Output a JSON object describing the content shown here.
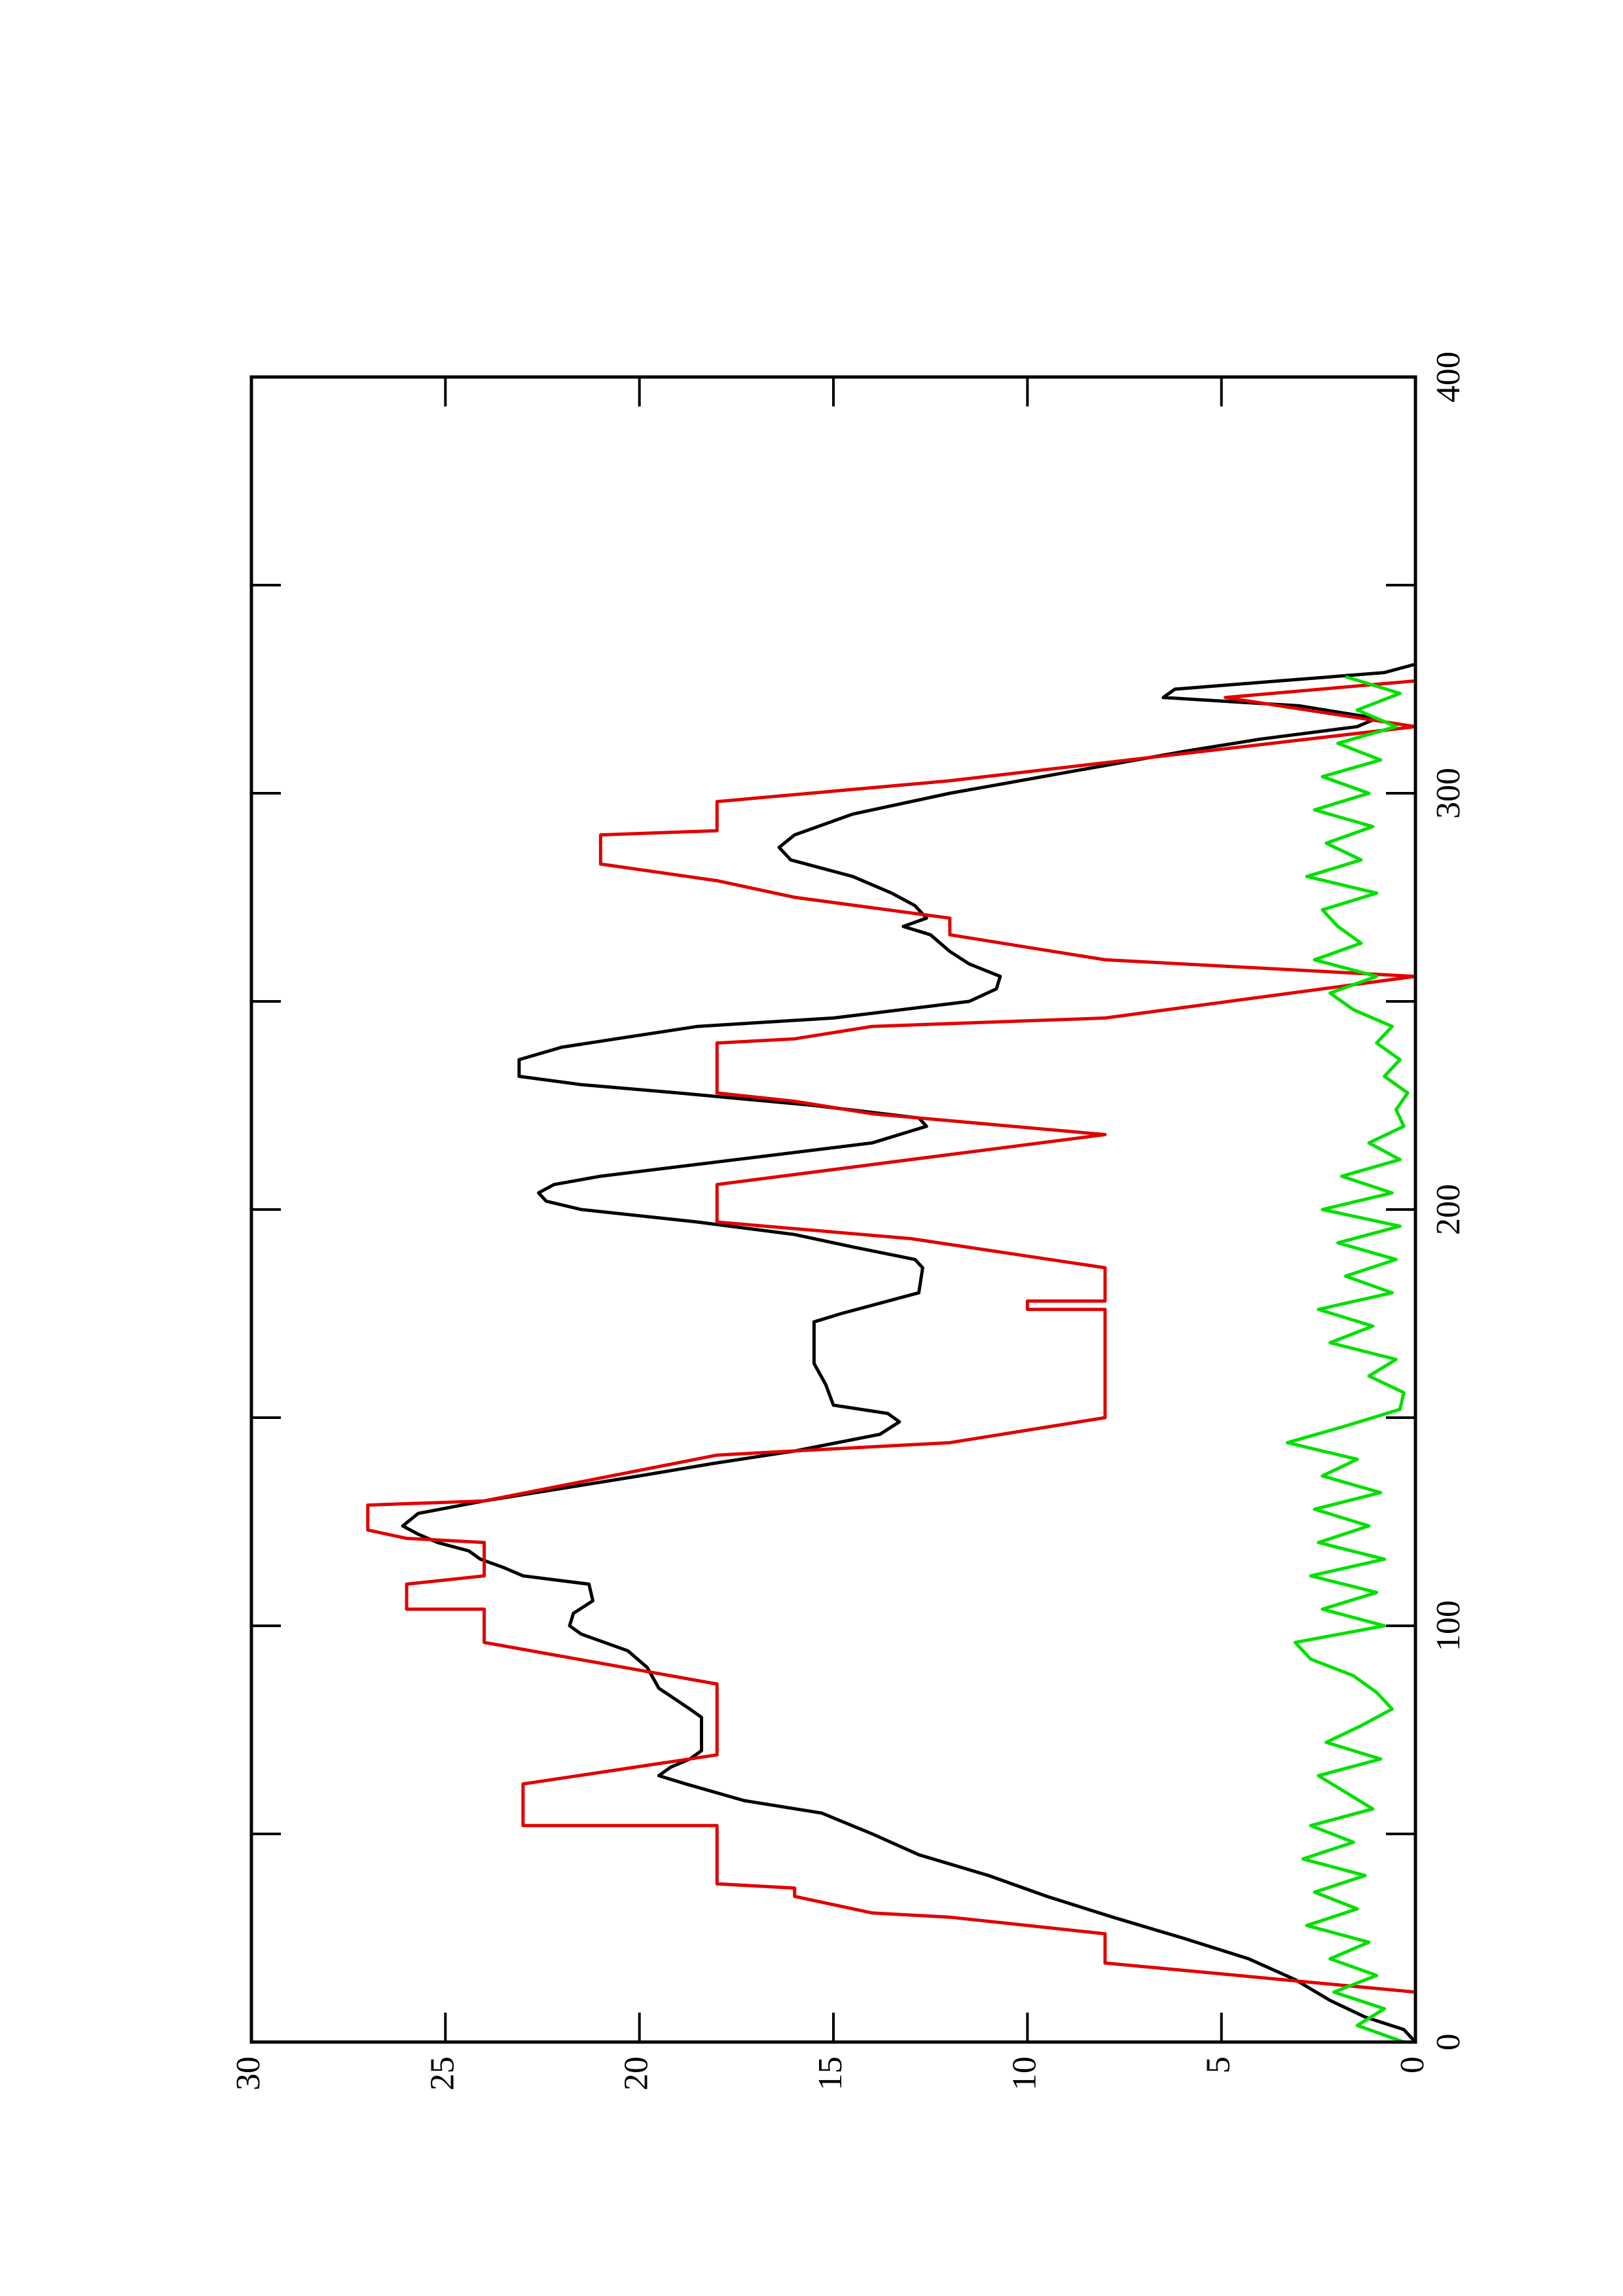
{
  "chart_data": {
    "type": "line",
    "xlim": [
      0,
      400
    ],
    "ylim": [
      0,
      30
    ],
    "xticks": [
      0,
      100,
      200,
      300,
      400
    ],
    "xminor_ticks": [
      50,
      150,
      250,
      350
    ],
    "yticks": [
      0,
      5,
      10,
      15,
      20,
      25,
      30
    ],
    "orientation": "rotated",
    "series": [
      {
        "color": "#000000",
        "x": [
          0,
          3,
          6,
          10,
          15,
          20,
          25,
          30,
          35,
          40,
          45,
          50,
          55,
          58,
          62,
          64,
          66,
          68,
          70,
          78,
          80,
          85,
          90,
          94,
          98,
          100,
          103,
          106,
          110,
          112,
          114,
          116,
          118,
          120,
          122,
          124,
          127,
          130,
          133,
          136,
          139,
          142,
          146,
          149,
          151,
          153,
          158,
          163,
          170,
          173,
          175,
          180,
          186,
          188,
          191,
          194,
          197,
          200,
          202,
          204,
          206,
          208,
          212,
          216,
          220,
          222,
          225,
          228,
          230,
          232,
          236,
          239,
          241,
          244,
          246,
          250,
          253,
          256,
          259,
          262,
          266,
          268,
          270,
          273,
          276,
          280,
          284,
          287,
          290,
          295,
          300,
          305,
          310,
          313,
          316,
          318,
          321,
          323,
          325,
          327,
          329,
          331
        ],
        "values": [
          0,
          0.3,
          1.3,
          2.2,
          3.1,
          4.3,
          6,
          7.8,
          9.5,
          11,
          12.8,
          14,
          15.3,
          17.3,
          18.8,
          19.5,
          19.2,
          18.7,
          18.4,
          18.4,
          18.7,
          19.5,
          19.8,
          20.3,
          21.5,
          21.8,
          21.7,
          21.2,
          21.3,
          23,
          23.5,
          24.1,
          24.4,
          25.2,
          25.7,
          26.1,
          25.7,
          24,
          22,
          20,
          18.1,
          16,
          13.8,
          13.3,
          13.6,
          15,
          15.2,
          15.5,
          15.5,
          15.5,
          14.8,
          12.8,
          12.7,
          12.9,
          14.5,
          16,
          18.5,
          21.5,
          22.4,
          22.6,
          22.2,
          21,
          17.5,
          14,
          12.6,
          12.8,
          15.5,
          19,
          21.5,
          23.1,
          23.1,
          22,
          20.6,
          18.5,
          15,
          11.5,
          10.8,
          10.7,
          11.5,
          12,
          12.5,
          13.2,
          12.6,
          12.9,
          13.5,
          14.5,
          16.1,
          16.4,
          16,
          14.5,
          12,
          9,
          6,
          4,
          1.5,
          1,
          3,
          6.5,
          6.2,
          3.5,
          0.8,
          0
        ]
      },
      {
        "color": "#e00000",
        "x": [
          12,
          19,
          26,
          30,
          31,
          35,
          37,
          38,
          52,
          52,
          62,
          69,
          86,
          96,
          104,
          104,
          110,
          112,
          120,
          121,
          123,
          129,
          130,
          141,
          144,
          150,
          176,
          176,
          178,
          178,
          186,
          193,
          197,
          206,
          218,
          223,
          226,
          228,
          240,
          241,
          244,
          246,
          256,
          260,
          266,
          270,
          275,
          279,
          283,
          290,
          291,
          298,
          303,
          316,
          323,
          327,
          330
        ],
        "values": [
          0,
          8,
          8,
          12,
          14,
          16,
          16,
          18,
          18,
          23,
          23,
          18,
          18,
          24,
          24,
          26,
          26,
          24,
          24,
          26,
          27,
          27,
          24,
          18,
          12,
          8,
          8,
          10,
          10,
          8,
          8,
          13,
          18,
          18,
          8,
          14,
          16,
          18,
          18,
          16,
          14,
          8,
          0,
          8,
          12,
          12,
          16,
          18,
          21,
          21,
          18,
          18,
          12,
          0,
          4.9,
          0,
          0
        ]
      },
      {
        "color": "#00e000",
        "x": [
          0,
          4,
          8,
          12,
          16,
          20,
          24,
          28,
          32,
          36,
          40,
          44,
          48,
          52,
          56,
          60,
          64,
          68,
          72,
          76,
          80,
          84,
          88,
          92,
          96,
          100,
          104,
          108,
          112,
          116,
          120,
          124,
          128,
          132,
          136,
          140,
          144,
          148,
          152,
          156,
          160,
          164,
          168,
          172,
          176,
          180,
          184,
          188,
          192,
          196,
          200,
          204,
          208,
          212,
          216,
          220,
          224,
          228,
          232,
          236,
          240,
          244,
          248,
          252,
          256,
          260,
          264,
          268,
          272,
          276,
          280,
          284,
          288,
          292,
          296,
          300,
          304,
          308,
          312,
          316,
          320,
          324,
          328
        ],
        "values": [
          0.3,
          1.5,
          0.8,
          2.1,
          1.0,
          2.2,
          1.2,
          2.8,
          1.5,
          2.6,
          1.3,
          2.9,
          1.6,
          2.7,
          1.1,
          1.8,
          2.5,
          0.9,
          2.3,
          1.4,
          0.6,
          1.0,
          1.6,
          2.7,
          3.1,
          0.8,
          2.4,
          1.0,
          2.7,
          0.8,
          2.5,
          1.2,
          2.6,
          0.9,
          2.4,
          1.5,
          3.3,
          1.8,
          0.4,
          0.3,
          1.2,
          0.5,
          2.2,
          1.1,
          2.5,
          0.6,
          1.8,
          0.5,
          2.0,
          0.4,
          2.4,
          0.6,
          1.9,
          0.4,
          1.2,
          0.3,
          0.5,
          0.2,
          0.8,
          0.4,
          1.0,
          0.6,
          1.6,
          2.2,
          1.0,
          2.6,
          1.4,
          2.0,
          2.4,
          1.0,
          2.8,
          1.4,
          2.3,
          1.1,
          2.6,
          1.2,
          2.4,
          0.9,
          2.0,
          0.5,
          1.5,
          0.4,
          1.8
        ]
      }
    ]
  }
}
